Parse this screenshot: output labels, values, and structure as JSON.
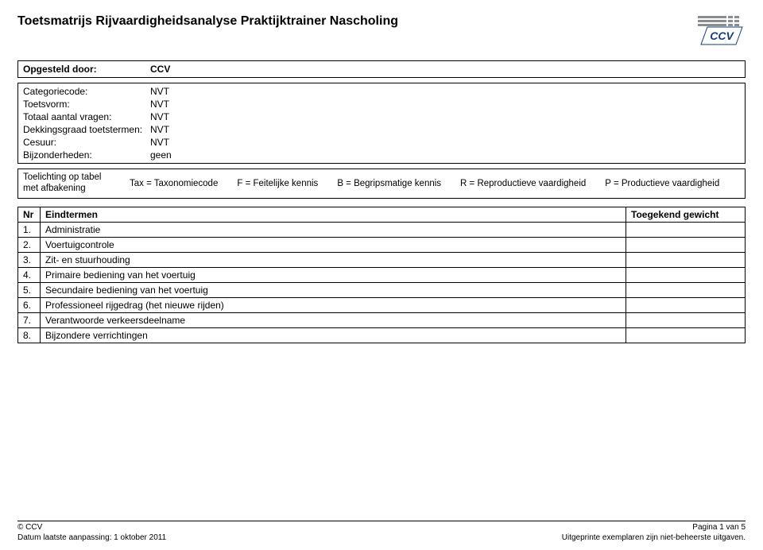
{
  "header": {
    "title": "Toetsmatrijs Rijvaardigheidsanalyse Praktijktrainer Nascholing"
  },
  "opgesteld": {
    "label": "Opgesteld door:",
    "value": "CCV"
  },
  "meta": {
    "rows": [
      {
        "label": "Categoriecode:",
        "value": "NVT"
      },
      {
        "label": "Toetsvorm:",
        "value": "NVT"
      },
      {
        "label": "Totaal aantal vragen:",
        "value": "NVT"
      },
      {
        "label": "Dekkingsgraad toetstermen:",
        "value": "NVT"
      },
      {
        "label": "Cesuur:",
        "value": "NVT"
      },
      {
        "label": "Bijzonderheden:",
        "value": "geen"
      }
    ]
  },
  "legend": {
    "title_line1": "Toelichting op tabel",
    "title_line2": "met afbakening",
    "items": [
      "Tax = Taxonomiecode",
      "F = Feitelijke kennis",
      "B = Begripsmatige kennis",
      "R = Reproductieve vaardigheid",
      "P = Productieve vaardigheid"
    ]
  },
  "eind": {
    "header_nr": "Nr",
    "header_term": "Eindtermen",
    "header_weight": "Toegekend gewicht",
    "rows": [
      {
        "nr": "1.",
        "term": "Administratie",
        "weight": ""
      },
      {
        "nr": "2.",
        "term": "Voertuigcontrole",
        "weight": ""
      },
      {
        "nr": "3.",
        "term": "Zit- en stuurhouding",
        "weight": ""
      },
      {
        "nr": "4.",
        "term": "Primaire bediening van het voertuig",
        "weight": ""
      },
      {
        "nr": "5.",
        "term": "Secundaire bediening van het voertuig",
        "weight": ""
      },
      {
        "nr": "6.",
        "term": "Professioneel rijgedrag (het nieuwe rijden)",
        "weight": ""
      },
      {
        "nr": "7.",
        "term": "Verantwoorde verkeersdeelname",
        "weight": ""
      },
      {
        "nr": "8.",
        "term": "Bijzondere verrichtingen",
        "weight": ""
      }
    ]
  },
  "footer": {
    "copyright": "© CCV",
    "page": "Pagina 1 van 5",
    "date": "Datum laatste aanpassing: 1 oktober 2011",
    "disclaimer": "Uitgeprinte exemplaren zijn niet-beheerste uitgaven."
  },
  "logo": {
    "text": "CCV",
    "stripe_color": "#8a8e91",
    "text_color": "#1a3e6e"
  }
}
